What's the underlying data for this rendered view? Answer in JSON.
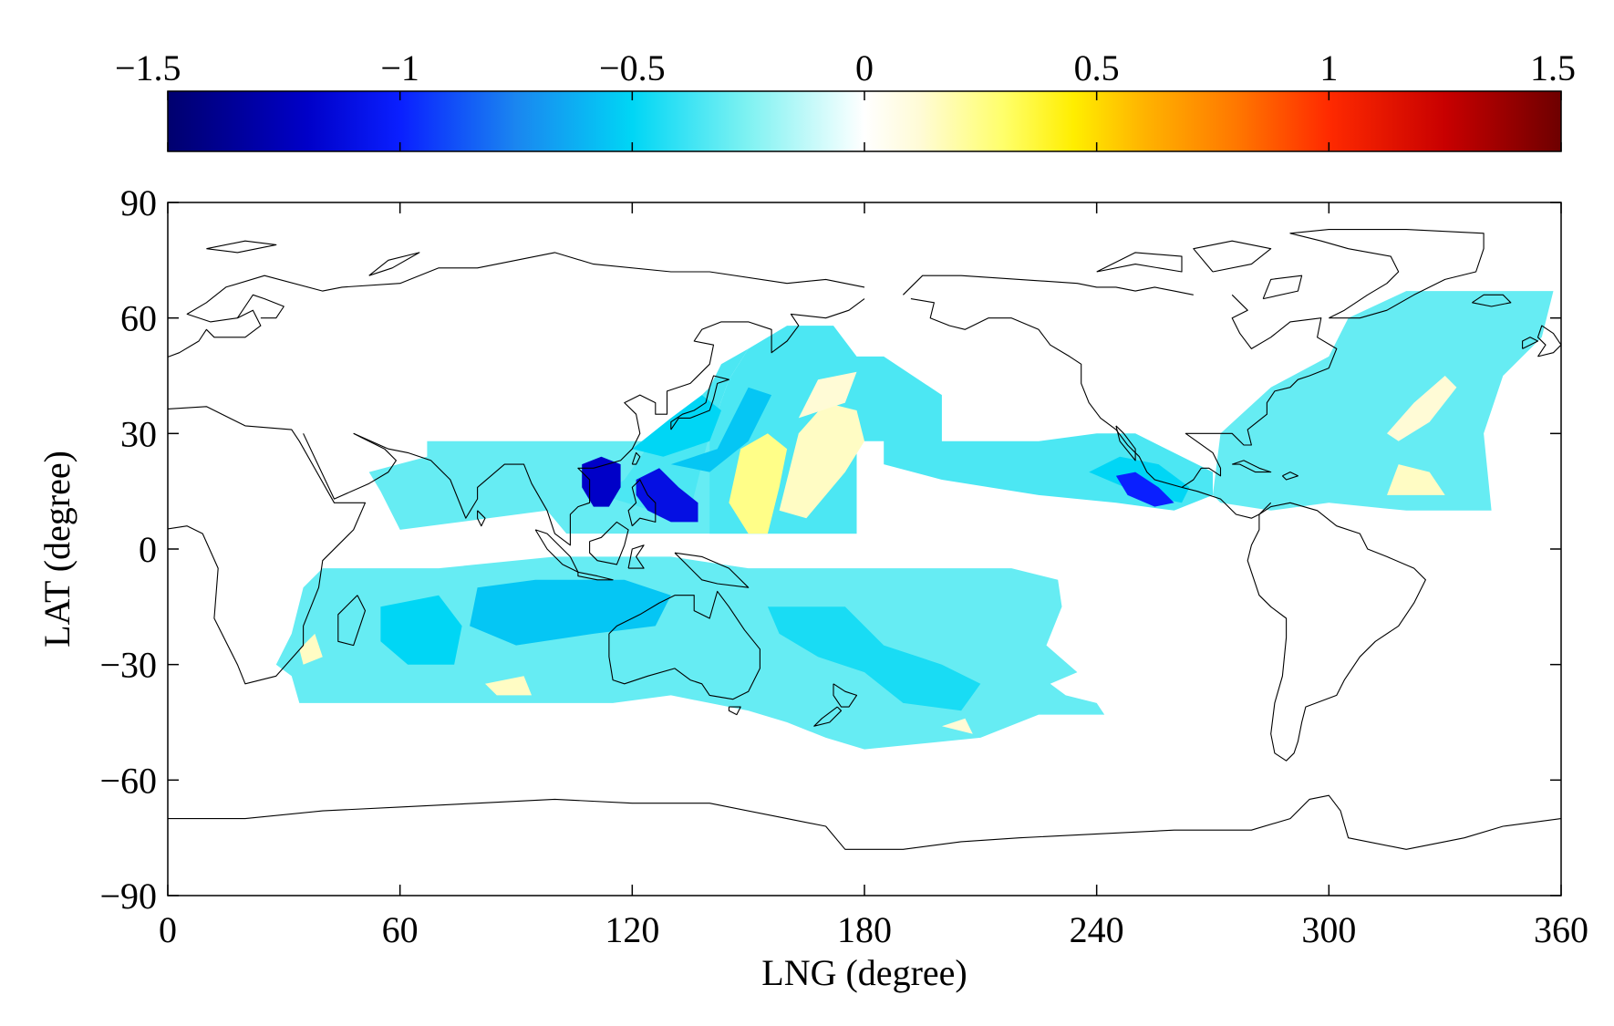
{
  "figure": {
    "xlabel": "LNG (degree)",
    "ylabel": "LAT (degree)"
  },
  "colorbar": {
    "placement": "top",
    "range": [
      -1.5,
      1.5
    ],
    "tick_labels": [
      "−1.5",
      "−1",
      "−0.5",
      "0",
      "0.5",
      "1",
      "1.5"
    ],
    "tick_values": [
      -1.5,
      -1,
      -0.5,
      0,
      0.5,
      1,
      1.5
    ],
    "stops": [
      {
        "v": -1.5,
        "c": "#00006e"
      },
      {
        "v": -1.2,
        "c": "#0000c8"
      },
      {
        "v": -1.0,
        "c": "#0a1fff"
      },
      {
        "v": -0.75,
        "c": "#1a86f0"
      },
      {
        "v": -0.5,
        "c": "#00d6f5"
      },
      {
        "v": -0.25,
        "c": "#7ff2f2"
      },
      {
        "v": -0.05,
        "c": "#e6fdfd"
      },
      {
        "v": 0.0,
        "c": "#ffffff"
      },
      {
        "v": 0.12,
        "c": "#fffbd6"
      },
      {
        "v": 0.3,
        "c": "#ffff6a"
      },
      {
        "v": 0.45,
        "c": "#ffee00"
      },
      {
        "v": 0.6,
        "c": "#ffb400"
      },
      {
        "v": 0.8,
        "c": "#ff7800"
      },
      {
        "v": 1.0,
        "c": "#ff2a00"
      },
      {
        "v": 1.25,
        "c": "#c80000"
      },
      {
        "v": 1.5,
        "c": "#6e0000"
      }
    ]
  },
  "axes": {
    "xlim": [
      0,
      360
    ],
    "ylim": [
      -90,
      90
    ],
    "x_ticks": [
      0,
      60,
      120,
      180,
      240,
      300,
      360
    ],
    "x_tick_labels": [
      "0",
      "60",
      "120",
      "180",
      "240",
      "300",
      "360"
    ],
    "y_ticks": [
      90,
      60,
      30,
      0,
      -30,
      -60,
      -90
    ],
    "y_tick_labels": [
      "90",
      "60",
      "30",
      "0",
      "−30",
      "−60",
      "−90"
    ],
    "grid": false
  },
  "chart_data": {
    "type": "heatmap",
    "description_note": "",
    "regions": [
      {
        "name": "",
        "value": -0.3,
        "poly": [
          [
            67,
            28
          ],
          [
            178,
            28
          ],
          [
            178,
            4
          ],
          [
            135,
            4
          ],
          [
            103,
            4
          ],
          [
            98,
            10
          ],
          [
            60,
            5
          ],
          [
            55,
            15
          ],
          [
            52,
            20
          ],
          [
            67,
            24
          ]
        ]
      },
      {
        "name": "",
        "value": -0.35,
        "poly": [
          [
            140,
            30
          ],
          [
            145,
            44
          ],
          [
            150,
            52
          ],
          [
            160,
            58
          ],
          [
            172,
            58
          ],
          [
            178,
            50
          ],
          [
            185,
            50
          ],
          [
            200,
            40
          ],
          [
            200,
            28
          ],
          [
            185,
            28
          ],
          [
            185,
            22
          ],
          [
            200,
            18
          ],
          [
            225,
            14
          ],
          [
            245,
            12
          ],
          [
            260,
            10
          ],
          [
            270,
            14
          ],
          [
            270,
            20
          ],
          [
            250,
            30
          ],
          [
            240,
            30
          ],
          [
            225,
            28
          ],
          [
            210,
            28
          ],
          [
            185,
            28
          ],
          [
            178,
            28
          ],
          [
            178,
            4
          ],
          [
            140,
            4
          ]
        ]
      },
      {
        "name": "",
        "value": -0.35,
        "poly": [
          [
            118,
            18
          ],
          [
            125,
            28
          ],
          [
            133,
            35
          ],
          [
            140,
            42
          ],
          [
            143,
            48
          ],
          [
            150,
            52
          ],
          [
            145,
            44
          ],
          [
            140,
            30
          ],
          [
            135,
            10
          ],
          [
            125,
            10
          ],
          [
            112,
            14
          ]
        ]
      },
      {
        "name": "",
        "value": -0.3,
        "poly": [
          [
            270,
            14
          ],
          [
            272,
            30
          ],
          [
            285,
            42
          ],
          [
            300,
            50
          ],
          [
            305,
            60
          ],
          [
            320,
            67
          ],
          [
            358,
            67
          ],
          [
            355,
            55
          ],
          [
            345,
            45
          ],
          [
            340,
            30
          ],
          [
            342,
            10
          ],
          [
            320,
            10
          ],
          [
            300,
            12
          ],
          [
            285,
            10
          ],
          [
            272,
            12
          ]
        ]
      },
      {
        "name": "",
        "value": -0.3,
        "poly": [
          [
            40,
            -5
          ],
          [
            70,
            -5
          ],
          [
            100,
            -2
          ],
          [
            130,
            -2
          ],
          [
            150,
            -5
          ],
          [
            175,
            -5
          ],
          [
            195,
            -5
          ],
          [
            218,
            -5
          ],
          [
            230,
            -8
          ],
          [
            231,
            -15
          ],
          [
            227,
            -25
          ],
          [
            235,
            -32
          ],
          [
            228,
            -35
          ],
          [
            232,
            -38
          ],
          [
            240,
            -40
          ],
          [
            242,
            -43
          ],
          [
            225,
            -43
          ],
          [
            210,
            -49
          ],
          [
            180,
            -52
          ],
          [
            170,
            -49
          ],
          [
            160,
            -45
          ],
          [
            150,
            -42
          ],
          [
            130,
            -38
          ],
          [
            115,
            -40
          ],
          [
            95,
            -40
          ],
          [
            70,
            -40
          ],
          [
            50,
            -40
          ],
          [
            34,
            -40
          ],
          [
            32,
            -33
          ],
          [
            28,
            -30
          ],
          [
            32,
            -22
          ],
          [
            35,
            -10
          ]
        ]
      },
      {
        "name": "",
        "value": -0.5,
        "poly": [
          [
            120,
            26
          ],
          [
            130,
            34
          ],
          [
            138,
            40
          ],
          [
            143,
            36
          ],
          [
            140,
            28
          ],
          [
            128,
            24
          ]
        ]
      },
      {
        "name": "",
        "value": -0.55,
        "poly": [
          [
            130,
            22
          ],
          [
            142,
            26
          ],
          [
            146,
            34
          ],
          [
            150,
            42
          ],
          [
            156,
            40
          ],
          [
            150,
            28
          ],
          [
            140,
            20
          ]
        ]
      },
      {
        "name": "",
        "value": 0.25,
        "poly": [
          [
            145,
            12
          ],
          [
            148,
            26
          ],
          [
            155,
            30
          ],
          [
            160,
            26
          ],
          [
            158,
            16
          ],
          [
            155,
            4
          ],
          [
            150,
            4
          ]
        ]
      },
      {
        "name": "",
        "value": 0.15,
        "poly": [
          [
            158,
            10
          ],
          [
            163,
            30
          ],
          [
            170,
            38
          ],
          [
            178,
            36
          ],
          [
            180,
            28
          ],
          [
            175,
            20
          ],
          [
            170,
            14
          ],
          [
            165,
            8
          ]
        ]
      },
      {
        "name": "",
        "value": 0.12,
        "poly": [
          [
            163,
            34
          ],
          [
            168,
            44
          ],
          [
            178,
            46
          ],
          [
            175,
            38
          ]
        ]
      },
      {
        "name": "",
        "value": 0.12,
        "poly": [
          [
            315,
            30
          ],
          [
            322,
            38
          ],
          [
            330,
            45
          ],
          [
            333,
            42
          ],
          [
            326,
            33
          ],
          [
            318,
            28
          ]
        ]
      },
      {
        "name": "",
        "value": 0.15,
        "poly": [
          [
            315,
            14
          ],
          [
            318,
            22
          ],
          [
            326,
            20
          ],
          [
            330,
            14
          ]
        ]
      },
      {
        "name": "",
        "value": -0.55,
        "poly": [
          [
            80,
            -10
          ],
          [
            95,
            -8
          ],
          [
            118,
            -8
          ],
          [
            130,
            -12
          ],
          [
            126,
            -20
          ],
          [
            110,
            -22
          ],
          [
            90,
            -25
          ],
          [
            78,
            -20
          ]
        ]
      },
      {
        "name": "",
        "value": -0.5,
        "poly": [
          [
            55,
            -15
          ],
          [
            70,
            -12
          ],
          [
            76,
            -20
          ],
          [
            74,
            -30
          ],
          [
            62,
            -30
          ],
          [
            55,
            -24
          ]
        ]
      },
      {
        "name": "",
        "value": -0.45,
        "poly": [
          [
            155,
            -15
          ],
          [
            175,
            -15
          ],
          [
            185,
            -25
          ],
          [
            200,
            -30
          ],
          [
            210,
            -35
          ],
          [
            205,
            -42
          ],
          [
            190,
            -40
          ],
          [
            180,
            -32
          ],
          [
            168,
            -28
          ],
          [
            158,
            -22
          ]
        ]
      },
      {
        "name": "",
        "value": -0.5,
        "poly": [
          [
            238,
            20
          ],
          [
            246,
            24
          ],
          [
            256,
            22
          ],
          [
            264,
            16
          ],
          [
            262,
            12
          ],
          [
            252,
            14
          ]
        ]
      },
      {
        "name": "",
        "value": -1.2,
        "poly": [
          [
            107,
            16
          ],
          [
            107,
            22
          ],
          [
            112,
            24
          ],
          [
            117,
            22
          ],
          [
            117,
            16
          ],
          [
            114,
            11
          ],
          [
            110,
            11
          ]
        ]
      },
      {
        "name": "",
        "value": -1.1,
        "poly": [
          [
            121,
            18
          ],
          [
            127,
            21
          ],
          [
            132,
            16
          ],
          [
            137,
            12
          ],
          [
            137,
            7
          ],
          [
            130,
            7
          ],
          [
            124,
            10
          ],
          [
            121,
            14
          ]
        ]
      },
      {
        "name": "",
        "value": -1.0,
        "poly": [
          [
            245,
            19
          ],
          [
            250,
            20
          ],
          [
            256,
            16
          ],
          [
            260,
            12
          ],
          [
            255,
            11
          ],
          [
            248,
            14
          ]
        ]
      },
      {
        "name": "",
        "value": 0.15,
        "poly": [
          [
            82,
            -35
          ],
          [
            92,
            -33
          ],
          [
            94,
            -38
          ],
          [
            85,
            -38
          ]
        ]
      },
      {
        "name": "",
        "value": 0.15,
        "poly": [
          [
            34,
            -26
          ],
          [
            38,
            -22
          ],
          [
            40,
            -28
          ],
          [
            35,
            -30
          ]
        ]
      },
      {
        "name": "",
        "value": 0.12,
        "poly": [
          [
            200,
            -46
          ],
          [
            206,
            -44
          ],
          [
            208,
            -48
          ]
        ]
      }
    ]
  }
}
